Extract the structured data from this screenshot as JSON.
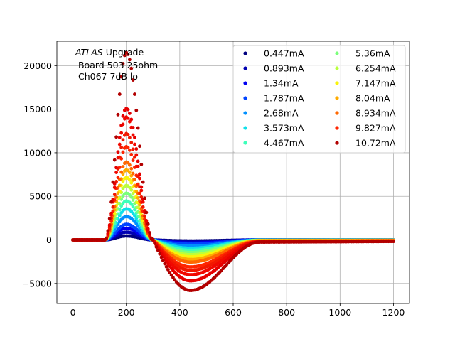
{
  "chart_data": {
    "type": "scatter",
    "annotation": {
      "line1_italic": "ATLAS",
      "line1_rest": " Upgrade",
      "line2": " Board 503 25ohm",
      "line3": " Ch067 7dB lo"
    },
    "xlim": [
      -60,
      1260
    ],
    "ylim": [
      -7300,
      22800
    ],
    "x_ticks": [
      0,
      200,
      400,
      600,
      800,
      1000,
      1200
    ],
    "y_ticks": [
      -5000,
      0,
      5000,
      10000,
      15000,
      20000
    ],
    "x_tick_labels": [
      "0",
      "200",
      "400",
      "600",
      "800",
      "1000",
      "1200"
    ],
    "y_tick_labels": [
      "−5000",
      "0",
      "5000",
      "10000",
      "15000",
      "20000"
    ],
    "grid": true,
    "legend_position": "top-right",
    "legend_columns": 2,
    "x_range": [
      0,
      1200
    ],
    "x_step": 6.25,
    "pulse_shape": {
      "rise_start": 120,
      "peak_x": 200,
      "zero_crossing": 300,
      "undershoot_min_x": 440,
      "recovery_end": 700,
      "tail_end": 1200
    },
    "series": [
      {
        "name": "0.447mA",
        "color": "#00007f",
        "peak": 450,
        "undershoot": -120,
        "tail": 0
      },
      {
        "name": "0.893mA",
        "color": "#0000b2",
        "peak": 890,
        "undershoot": -240,
        "tail": 0
      },
      {
        "name": "1.34mA",
        "color": "#0000f1",
        "peak": 1340,
        "undershoot": -360,
        "tail": 0
      },
      {
        "name": "1.787mA",
        "color": "#0044ff",
        "peak": 1790,
        "undershoot": -480,
        "tail": -10
      },
      {
        "name": "2.68mA",
        "color": "#0090ff",
        "peak": 2680,
        "undershoot": -720,
        "tail": -20
      },
      {
        "name": "3.573mA",
        "color": "#0fe0e9",
        "peak": 3570,
        "undershoot": -960,
        "tail": -30
      },
      {
        "name": "4.467mA",
        "color": "#3dffba",
        "peak": 4470,
        "undershoot": -1200,
        "tail": -40
      },
      {
        "name": "5.36mA",
        "color": "#7bff7b",
        "peak": 5360,
        "undershoot": -1450,
        "tail": -50
      },
      {
        "name": "6.254mA",
        "color": "#baff3d",
        "peak": 6250,
        "undershoot": -1700,
        "tail": -60
      },
      {
        "name": "7.147mA",
        "color": "#f9f40b",
        "peak": 7150,
        "undershoot": -1950,
        "tail": -80
      },
      {
        "name": "8.04mA",
        "color": "#ffac00",
        "peak": 8040,
        "undershoot": -2250,
        "tail": -100
      },
      {
        "name": "8.934mA",
        "color": "#ff6800",
        "peak": 8930,
        "undershoot": -2550,
        "tail": -130
      },
      {
        "name": "9.827mA",
        "color": "#ff2500",
        "peak": 10700,
        "undershoot": -3100,
        "tail": -180
      },
      {
        "name": "10.72mA",
        "color": "#b20000",
        "peak": 21500,
        "undershoot": -5800,
        "tail": -250
      }
    ],
    "extra_traces": [
      {
        "color": "#f11800",
        "peak": 12200,
        "undershoot": -3500,
        "tail": -190
      },
      {
        "color": "#f10800",
        "peak": 14100,
        "undershoot": -4000,
        "tail": -220
      },
      {
        "color": "#e60000",
        "peak": 15100,
        "undershoot": -4700,
        "tail": -240
      }
    ]
  }
}
